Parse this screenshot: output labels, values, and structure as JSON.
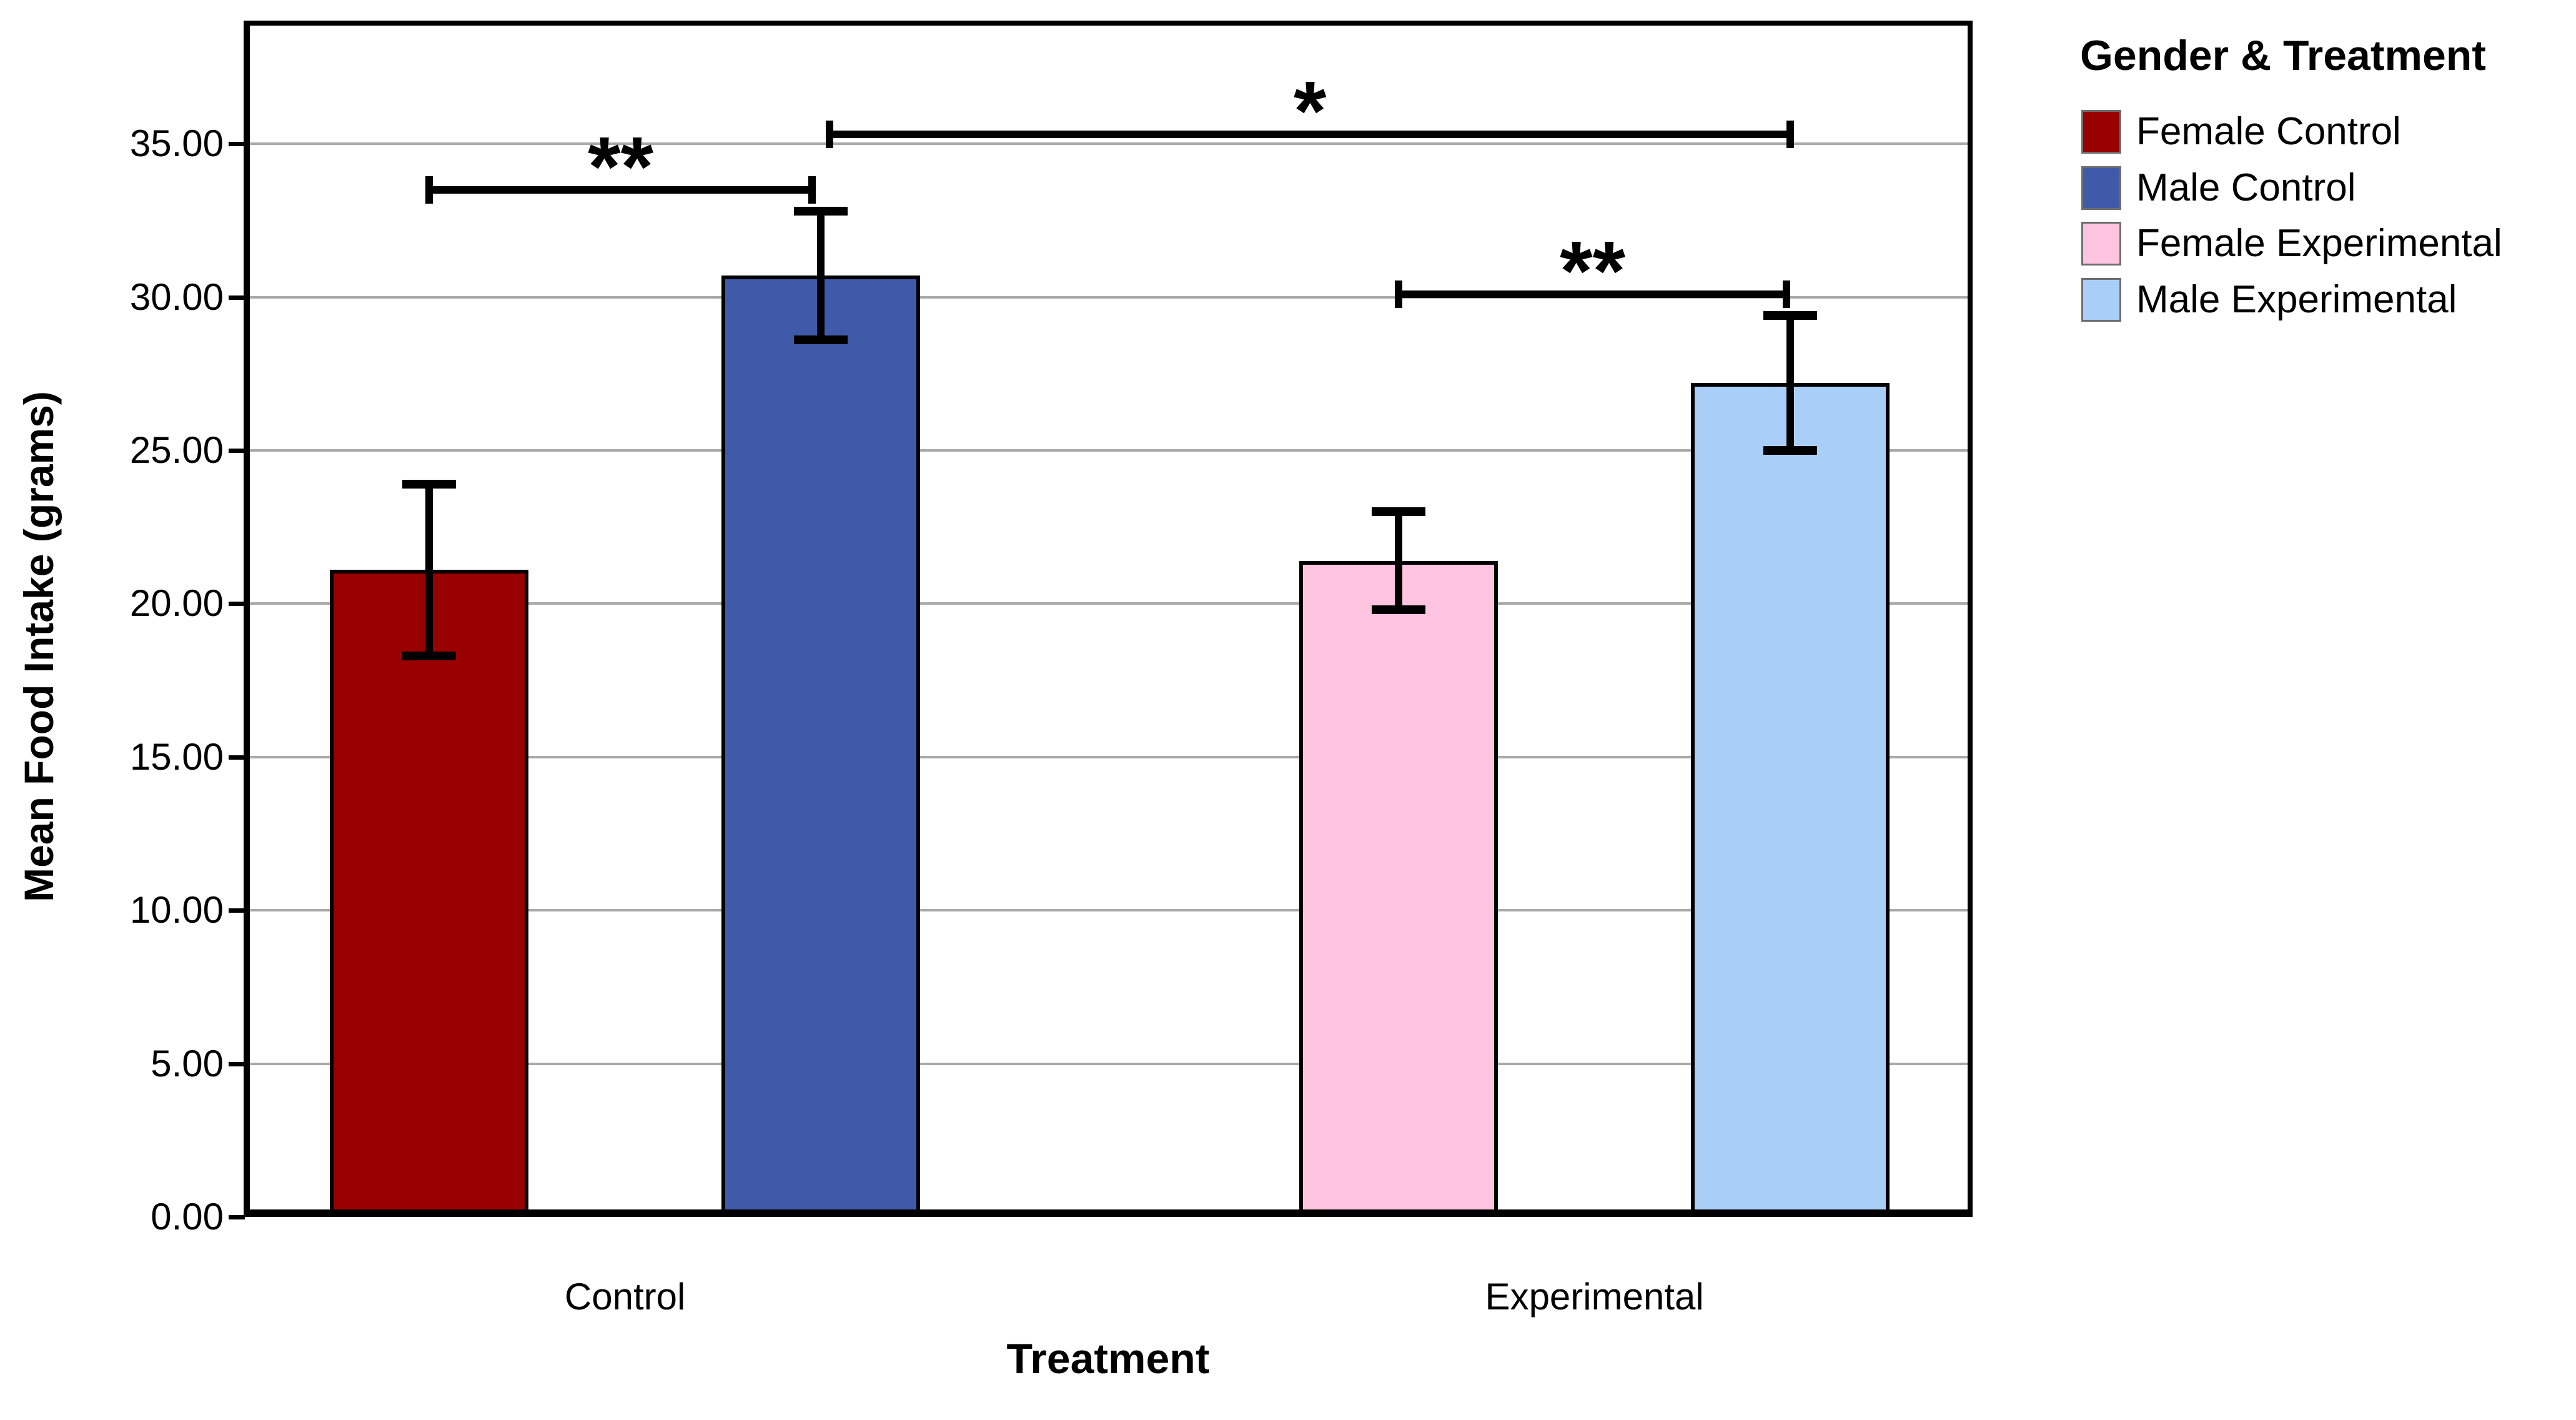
{
  "chart_data": {
    "type": "bar",
    "title": "",
    "xlabel": "Treatment",
    "ylabel": "Mean Food Intake (grams)",
    "categories": [
      "Control",
      "Experimental"
    ],
    "yticks": [
      0,
      5,
      10,
      15,
      20,
      25,
      30,
      35
    ],
    "ytick_labels": [
      "0.00",
      "5.00",
      "10.00",
      "15.00",
      "20.00",
      "25.00",
      "30.00",
      "35.00"
    ],
    "ylim": [
      0,
      39
    ],
    "grid": true,
    "gridline_color": "#A9A9A9",
    "legend_position": "top-right",
    "legend_title": "Gender & Treatment",
    "series": [
      {
        "name": "Female Control",
        "category": "Control",
        "mean": 21.1,
        "err_low": 18.3,
        "err_high": 23.9,
        "color": "#990000"
      },
      {
        "name": "Male Control",
        "category": "Control",
        "mean": 30.7,
        "err_low": 28.6,
        "err_high": 32.8,
        "color": "#3F5AA9"
      },
      {
        "name": "Female Experimental",
        "category": "Experimental",
        "mean": 21.4,
        "err_low": 19.8,
        "err_high": 23.0,
        "color": "#FFC5E0"
      },
      {
        "name": "Male Experimental",
        "category": "Experimental",
        "mean": 27.2,
        "err_low": 25.0,
        "err_high": 29.4,
        "color": "#A9CFF8"
      }
    ],
    "significance_brackets": [
      {
        "label": "**",
        "from": "Female Control",
        "to": "Male Control",
        "y": 33.5
      },
      {
        "label": "*",
        "from": "Male Control",
        "to": "Male Experimental",
        "y": 35.3
      },
      {
        "label": "**",
        "from": "Female Experimental",
        "to": "Male Experimental",
        "y": 30.1
      }
    ]
  }
}
